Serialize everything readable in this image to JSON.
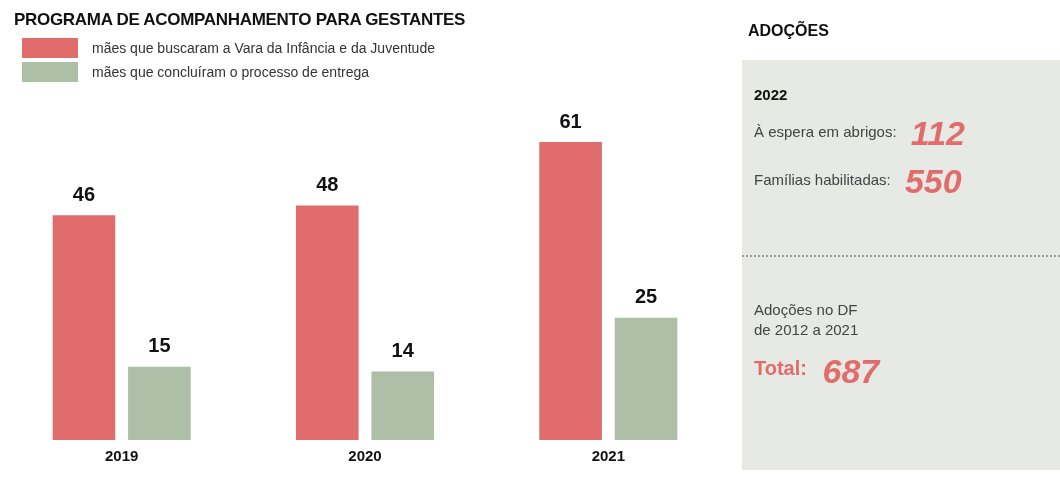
{
  "chart_data": [
    {
      "type": "bar",
      "title": "PROGRAMA DE ACOMPANHAMENTO PARA GESTANTES",
      "categories": [
        "2019",
        "2020",
        "2021"
      ],
      "series": [
        {
          "name": "mães que buscaram a Vara da Infância e da Juventude",
          "color": "#e06c6c",
          "values": [
            46,
            48,
            61
          ]
        },
        {
          "name": "mães que concluíram o processo de entrega",
          "color": "#aebfa8",
          "values": [
            15,
            14,
            25
          ]
        }
      ],
      "ylim": [
        0,
        61
      ],
      "data_labels": true,
      "legend": "top left",
      "grid": false,
      "tick_labels": "x"
    },
    {
      "type": "other",
      "title": "ADOÇÕES",
      "annotations": [
        "2022",
        "À espera em abrigos: 112",
        "Famílias habilitadas: 550",
        "Adoções no DF de 2012 a 2021",
        "Total: 687"
      ]
    }
  ]
}
